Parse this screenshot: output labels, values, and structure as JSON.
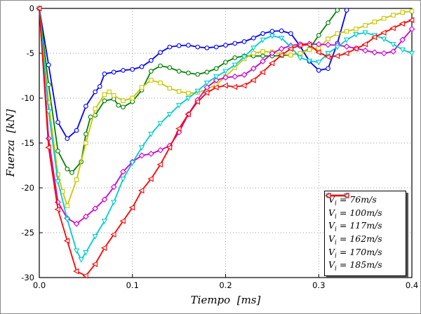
{
  "figure": {
    "xlabel": "Tiempo  [ms]",
    "ylabel": "Fuerza  [kN]"
  },
  "chart_data": {
    "type": "line",
    "title": "",
    "xlabel": "Tiempo [ms]",
    "ylabel": "Fuerza [kN]",
    "xlim": [
      0,
      0.4
    ],
    "ylim": [
      -30,
      0
    ],
    "xtick_values": [
      0,
      0.1,
      0.2,
      0.3,
      0.4
    ],
    "xtick_labels": [
      "0.0",
      "0.1",
      "0.2",
      "0.3",
      "0.4"
    ],
    "ytick_values": [
      0,
      -5,
      -10,
      -15,
      -20,
      -25,
      -30
    ],
    "ytick_labels": [
      "0",
      "-5",
      "-10",
      "-15",
      "-20",
      "-25",
      "-30"
    ],
    "grid": "dotted",
    "grid_color": "#9a9a9a",
    "legend_position": "lower right",
    "series": [
      {
        "name": "Vi = 76 m/s",
        "label_var": "V",
        "label_sub": "i",
        "label_rest": "= 76m/s",
        "color": "#0000FF",
        "marker": "circle",
        "points": [
          [
            0,
            0
          ],
          [
            0.01,
            -6.3
          ],
          [
            0.02,
            -12.7
          ],
          [
            0.03,
            -14.5
          ],
          [
            0.04,
            -13.6
          ],
          [
            0.05,
            -10.9
          ],
          [
            0.06,
            -9.3
          ],
          [
            0.065,
            -8.7
          ],
          [
            0.07,
            -7.3
          ],
          [
            0.08,
            -7.1
          ],
          [
            0.09,
            -6.9
          ],
          [
            0.1,
            -6.8
          ],
          [
            0.11,
            -6.5
          ],
          [
            0.12,
            -5.8
          ],
          [
            0.13,
            -4.9
          ],
          [
            0.14,
            -4.3
          ],
          [
            0.15,
            -4.15
          ],
          [
            0.16,
            -4.1
          ],
          [
            0.17,
            -4.3
          ],
          [
            0.18,
            -4.4
          ],
          [
            0.19,
            -4.3
          ],
          [
            0.2,
            -4.1
          ],
          [
            0.21,
            -3.9
          ],
          [
            0.22,
            -3.7
          ],
          [
            0.23,
            -3.3
          ],
          [
            0.24,
            -2.8
          ],
          [
            0.25,
            -2.55
          ],
          [
            0.26,
            -2.5
          ],
          [
            0.27,
            -2.8
          ],
          [
            0.28,
            -4.2
          ],
          [
            0.29,
            -5.9
          ],
          [
            0.3,
            -6.9
          ],
          [
            0.31,
            -6.7
          ],
          [
            0.32,
            -3.9
          ],
          [
            0.33,
            -0.2
          ]
        ]
      },
      {
        "name": "Vi = 100 m/s",
        "label_var": "V",
        "label_sub": "i",
        "label_rest": "= 100m/s",
        "color": "#008000",
        "marker": "circle",
        "points": [
          [
            0,
            0
          ],
          [
            0.01,
            -8.5
          ],
          [
            0.02,
            -15.9
          ],
          [
            0.03,
            -17.9
          ],
          [
            0.035,
            -18.3
          ],
          [
            0.045,
            -17.1
          ],
          [
            0.05,
            -14.0
          ],
          [
            0.055,
            -12.1
          ],
          [
            0.06,
            -11.9
          ],
          [
            0.07,
            -10.3
          ],
          [
            0.08,
            -10.1
          ],
          [
            0.085,
            -10.8
          ],
          [
            0.09,
            -11.0
          ],
          [
            0.1,
            -10.4
          ],
          [
            0.11,
            -9.1
          ],
          [
            0.12,
            -7.0
          ],
          [
            0.13,
            -6.4
          ],
          [
            0.14,
            -6.6
          ],
          [
            0.15,
            -7.0
          ],
          [
            0.16,
            -7.2
          ],
          [
            0.17,
            -7.35
          ],
          [
            0.18,
            -7.1
          ],
          [
            0.19,
            -6.7
          ],
          [
            0.2,
            -6.0
          ],
          [
            0.21,
            -5.5
          ],
          [
            0.22,
            -5.3
          ],
          [
            0.23,
            -5.3
          ],
          [
            0.24,
            -5.3
          ],
          [
            0.25,
            -5.3
          ],
          [
            0.26,
            -5.25
          ],
          [
            0.27,
            -5.2
          ],
          [
            0.28,
            -5.0
          ],
          [
            0.29,
            -4.5
          ],
          [
            0.3,
            -3.0
          ],
          [
            0.31,
            -1.6
          ],
          [
            0.32,
            -0.2
          ]
        ]
      },
      {
        "name": "Vi = 117 m/s",
        "label_var": "V",
        "label_sub": "i",
        "label_rest": "= 117m/s",
        "color": "#C8C800",
        "marker": "square",
        "points": [
          [
            0,
            0
          ],
          [
            0.01,
            -10.5
          ],
          [
            0.02,
            -18.5
          ],
          [
            0.025,
            -20.4
          ],
          [
            0.03,
            -22.0
          ],
          [
            0.04,
            -19.1
          ],
          [
            0.05,
            -15.0
          ],
          [
            0.06,
            -11.2
          ],
          [
            0.07,
            -9.6
          ],
          [
            0.075,
            -9.3
          ],
          [
            0.08,
            -9.7
          ],
          [
            0.09,
            -10.3
          ],
          [
            0.1,
            -10.0
          ],
          [
            0.11,
            -8.8
          ],
          [
            0.12,
            -8.0
          ],
          [
            0.13,
            -8.3
          ],
          [
            0.14,
            -8.9
          ],
          [
            0.15,
            -9.25
          ],
          [
            0.16,
            -9.45
          ],
          [
            0.17,
            -9.4
          ],
          [
            0.18,
            -9.0
          ],
          [
            0.19,
            -8.5
          ],
          [
            0.2,
            -7.6
          ],
          [
            0.21,
            -6.6
          ],
          [
            0.22,
            -5.6
          ],
          [
            0.23,
            -5.0
          ],
          [
            0.24,
            -4.8
          ],
          [
            0.25,
            -4.85
          ],
          [
            0.26,
            -5.1
          ],
          [
            0.27,
            -5.2
          ],
          [
            0.28,
            -5.0
          ],
          [
            0.29,
            -4.6
          ],
          [
            0.3,
            -4.4
          ],
          [
            0.31,
            -3.4
          ],
          [
            0.32,
            -2.8
          ],
          [
            0.33,
            -2.55
          ],
          [
            0.34,
            -2.3
          ],
          [
            0.35,
            -1.9
          ],
          [
            0.36,
            -1.5
          ],
          [
            0.37,
            -1.1
          ],
          [
            0.38,
            -0.75
          ],
          [
            0.39,
            -0.45
          ],
          [
            0.4,
            -0.3
          ]
        ]
      },
      {
        "name": "Vi = 162 m/s",
        "label_var": "V",
        "label_sub": "i",
        "label_rest": "= 162m/s",
        "color": "#CC00CC",
        "marker": "diamond",
        "points": [
          [
            0,
            0
          ],
          [
            0.01,
            -14.5
          ],
          [
            0.02,
            -21.6
          ],
          [
            0.03,
            -23.4
          ],
          [
            0.04,
            -24.0
          ],
          [
            0.05,
            -23.2
          ],
          [
            0.06,
            -22.3
          ],
          [
            0.07,
            -21.3
          ],
          [
            0.08,
            -19.9
          ],
          [
            0.09,
            -18.2
          ],
          [
            0.1,
            -17.1
          ],
          [
            0.11,
            -16.4
          ],
          [
            0.12,
            -16.2
          ],
          [
            0.13,
            -15.8
          ],
          [
            0.14,
            -15.3
          ],
          [
            0.15,
            -13.8
          ],
          [
            0.16,
            -11.8
          ],
          [
            0.17,
            -10.2
          ],
          [
            0.18,
            -8.8
          ],
          [
            0.19,
            -8.0
          ],
          [
            0.2,
            -7.7
          ],
          [
            0.21,
            -7.6
          ],
          [
            0.22,
            -7.4
          ],
          [
            0.23,
            -6.7
          ],
          [
            0.24,
            -5.9
          ],
          [
            0.25,
            -5.0
          ],
          [
            0.26,
            -4.5
          ],
          [
            0.27,
            -4.15
          ],
          [
            0.28,
            -4.0
          ],
          [
            0.29,
            -3.95
          ],
          [
            0.3,
            -4.0
          ],
          [
            0.31,
            -4.05
          ],
          [
            0.32,
            -4.1
          ],
          [
            0.33,
            -4.25
          ],
          [
            0.34,
            -4.45
          ],
          [
            0.35,
            -4.7
          ],
          [
            0.36,
            -4.9
          ],
          [
            0.37,
            -5.0
          ],
          [
            0.38,
            -4.8
          ],
          [
            0.39,
            -3.5
          ],
          [
            0.4,
            -2.3
          ]
        ]
      },
      {
        "name": "Vi = 170 m/s",
        "label_var": "V",
        "label_sub": "i",
        "label_rest": "= 170m/s",
        "color": "#00CCCC",
        "marker": "triangle-down",
        "points": [
          [
            0,
            0
          ],
          [
            0.01,
            -11.5
          ],
          [
            0.02,
            -19.3
          ],
          [
            0.03,
            -23.5
          ],
          [
            0.04,
            -27.0
          ],
          [
            0.045,
            -28.0
          ],
          [
            0.05,
            -27.2
          ],
          [
            0.06,
            -25.4
          ],
          [
            0.07,
            -23.7
          ],
          [
            0.08,
            -21.6
          ],
          [
            0.09,
            -19.0
          ],
          [
            0.1,
            -17.2
          ],
          [
            0.11,
            -15.5
          ],
          [
            0.12,
            -14.0
          ],
          [
            0.13,
            -12.8
          ],
          [
            0.14,
            -11.8
          ],
          [
            0.15,
            -10.8
          ],
          [
            0.16,
            -10.0
          ],
          [
            0.17,
            -9.2
          ],
          [
            0.18,
            -8.3
          ],
          [
            0.19,
            -7.6
          ],
          [
            0.2,
            -7.0
          ],
          [
            0.21,
            -6.3
          ],
          [
            0.22,
            -5.4
          ],
          [
            0.23,
            -4.4
          ],
          [
            0.24,
            -3.5
          ],
          [
            0.25,
            -3.05
          ],
          [
            0.26,
            -3.3
          ],
          [
            0.27,
            -4.3
          ],
          [
            0.28,
            -5.5
          ],
          [
            0.29,
            -5.85
          ],
          [
            0.3,
            -6.0
          ],
          [
            0.31,
            -5.0
          ],
          [
            0.32,
            -4.3
          ],
          [
            0.33,
            -3.5
          ],
          [
            0.34,
            -2.9
          ],
          [
            0.35,
            -2.7
          ],
          [
            0.36,
            -3.0
          ],
          [
            0.37,
            -3.4
          ],
          [
            0.38,
            -4.0
          ],
          [
            0.39,
            -4.6
          ],
          [
            0.4,
            -5.0
          ]
        ]
      },
      {
        "name": "Vi = 185 m/s",
        "label_var": "V",
        "label_sub": "i",
        "label_rest": "= 185m/s",
        "color": "#FF0000",
        "marker": "triangle-left",
        "points": [
          [
            0,
            0
          ],
          [
            0.01,
            -15.5
          ],
          [
            0.02,
            -22.4
          ],
          [
            0.03,
            -25.9
          ],
          [
            0.04,
            -29.3
          ],
          [
            0.05,
            -29.8
          ],
          [
            0.06,
            -28.5
          ],
          [
            0.07,
            -26.7
          ],
          [
            0.08,
            -25.2
          ],
          [
            0.09,
            -23.7
          ],
          [
            0.1,
            -22.2
          ],
          [
            0.11,
            -20.3
          ],
          [
            0.12,
            -19.0
          ],
          [
            0.13,
            -17.4
          ],
          [
            0.14,
            -15.5
          ],
          [
            0.15,
            -13.4
          ],
          [
            0.16,
            -11.8
          ],
          [
            0.17,
            -10.4
          ],
          [
            0.18,
            -9.4
          ],
          [
            0.19,
            -8.8
          ],
          [
            0.2,
            -8.6
          ],
          [
            0.21,
            -8.75
          ],
          [
            0.22,
            -8.6
          ],
          [
            0.23,
            -8.0
          ],
          [
            0.24,
            -7.1
          ],
          [
            0.25,
            -6.1
          ],
          [
            0.26,
            -5.2
          ],
          [
            0.27,
            -4.5
          ],
          [
            0.28,
            -4.1
          ],
          [
            0.29,
            -4.05
          ],
          [
            0.3,
            -4.9
          ],
          [
            0.31,
            -5.4
          ],
          [
            0.32,
            -5.3
          ],
          [
            0.33,
            -5.0
          ],
          [
            0.34,
            -4.5
          ],
          [
            0.35,
            -4.0
          ],
          [
            0.36,
            -3.2
          ],
          [
            0.37,
            -2.7
          ],
          [
            0.38,
            -2.2
          ],
          [
            0.39,
            -1.7
          ],
          [
            0.4,
            -1.3
          ]
        ]
      }
    ]
  }
}
